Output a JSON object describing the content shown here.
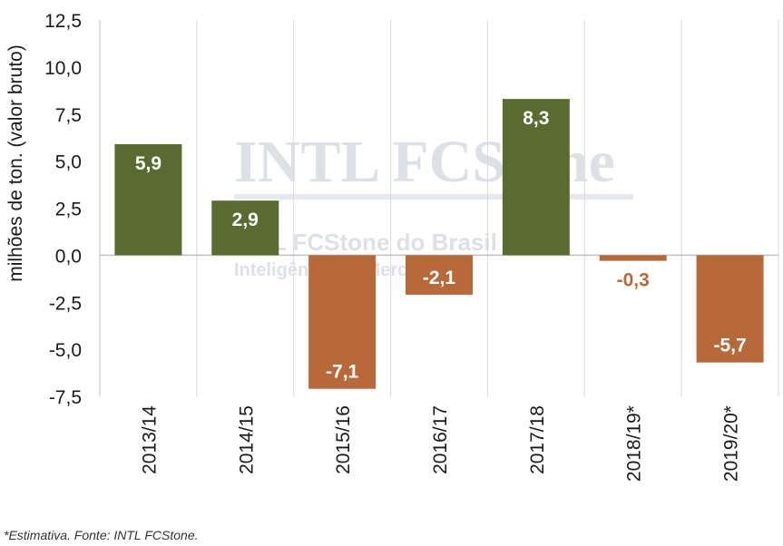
{
  "chart_data": {
    "type": "bar",
    "categories": [
      "2013/14",
      "2014/15",
      "2015/16",
      "2016/17",
      "2017/18",
      "2018/19*",
      "2019/20*"
    ],
    "values": [
      5.9,
      2.9,
      -7.1,
      -2.1,
      8.3,
      -0.3,
      -5.7
    ],
    "value_labels": [
      "5,9",
      "2,9",
      "-7,1",
      "-2,1",
      "8,3",
      "-0,3",
      "-5,7"
    ],
    "ylabel": "milhões de ton. (valor bruto)",
    "ylim": [
      -7.5,
      12.5
    ],
    "yticks": [
      12.5,
      10.0,
      7.5,
      5.0,
      2.5,
      0.0,
      -2.5,
      -5.0,
      -7.5
    ],
    "ytick_labels": [
      "12,5",
      "10,0",
      "7,5",
      "5,0",
      "2,5",
      "0,0",
      "-2,5",
      "-5,0",
      "-7,5"
    ],
    "grid": "vertical",
    "colors": {
      "positive": "#5a6b30",
      "negative": "#b8693a",
      "negative_label_outside": "#b8693a"
    }
  },
  "watermark": {
    "logo": "INTL FCStone",
    "line1": "INTL FCStone do Brasil Ltda.",
    "line2": "Inteligência de Mercado"
  },
  "footnote": "*Estimativa. Fonte: INTL FCStone."
}
